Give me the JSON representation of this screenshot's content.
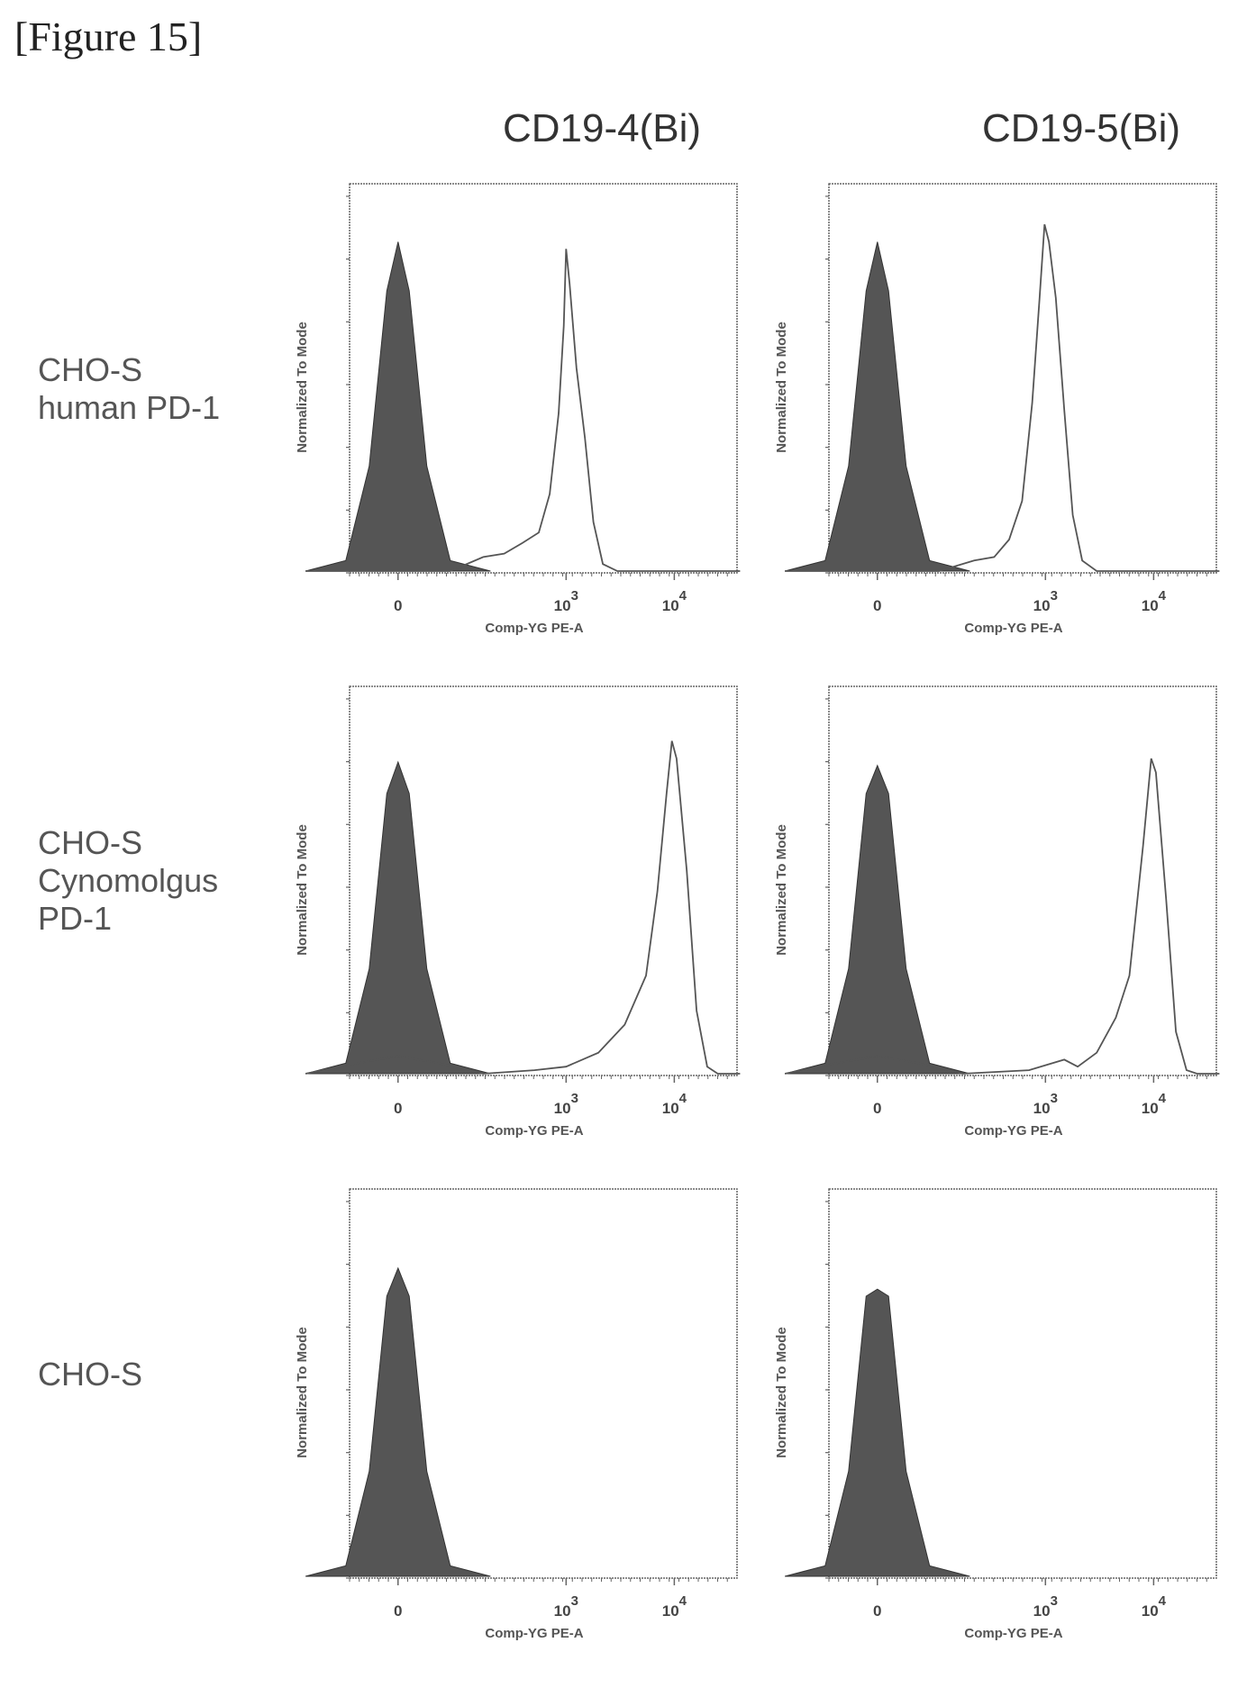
{
  "figure_label": "[Figure 15]",
  "columns": [
    "CD19-4(Bi)",
    "CD19-5(Bi)"
  ],
  "rows": [
    {
      "label_lines": [
        "CHO-S",
        "human PD-1"
      ]
    },
    {
      "label_lines": [
        "CHO-S",
        "Cynomolgus",
        "PD-1"
      ]
    },
    {
      "label_lines": [
        "CHO-S"
      ]
    }
  ],
  "colors": {
    "filled": "#555555",
    "outline": "#555555",
    "axis": "#666666"
  },
  "chart_data": [
    {
      "type": "area",
      "panel": "CD19-4(Bi) / CHO-S human PD-1",
      "xlabel": "Comp-YG PE-A",
      "ylabel": "Normalized To Mode",
      "x_ticks": [
        {
          "value": 0,
          "label": "0"
        },
        {
          "value": 1000,
          "label": "10",
          "sup": "3"
        },
        {
          "value": 10000,
          "label": "10",
          "sup": "4"
        }
      ],
      "ylim": [
        0,
        100
      ],
      "series": [
        {
          "role": "filled",
          "points": [
            [
              -180,
              0
            ],
            [
              -60,
              3
            ],
            [
              -25,
              30
            ],
            [
              -8,
              80
            ],
            [
              0,
              94
            ],
            [
              8,
              80
            ],
            [
              25,
              30
            ],
            [
              60,
              3
            ],
            [
              180,
              0
            ]
          ]
        },
        {
          "role": "outline",
          "points": [
            [
              -180,
              0
            ],
            [
              60,
              0
            ],
            [
              150,
              4
            ],
            [
              250,
              5
            ],
            [
              380,
              8
            ],
            [
              550,
              11
            ],
            [
              700,
              22
            ],
            [
              850,
              45
            ],
            [
              950,
              70
            ],
            [
              1000,
              92
            ],
            [
              1080,
              82
            ],
            [
              1250,
              58
            ],
            [
              1500,
              38
            ],
            [
              1800,
              14
            ],
            [
              2200,
              2
            ],
            [
              3000,
              0
            ],
            [
              40000,
              0
            ]
          ]
        }
      ]
    },
    {
      "type": "area",
      "panel": "CD19-5(Bi) / CHO-S human PD-1",
      "xlabel": "Comp-YG PE-A",
      "ylabel": "Normalized To Mode",
      "x_ticks": [
        {
          "value": 0,
          "label": "0"
        },
        {
          "value": 1000,
          "label": "10",
          "sup": "3"
        },
        {
          "value": 10000,
          "label": "10",
          "sup": "4"
        }
      ],
      "ylim": [
        0,
        100
      ],
      "series": [
        {
          "role": "filled",
          "points": [
            [
              -180,
              0
            ],
            [
              -60,
              3
            ],
            [
              -25,
              30
            ],
            [
              -8,
              80
            ],
            [
              0,
              94
            ],
            [
              8,
              80
            ],
            [
              25,
              30
            ],
            [
              60,
              3
            ],
            [
              180,
              0
            ]
          ]
        },
        {
          "role": "outline",
          "points": [
            [
              -180,
              0
            ],
            [
              80,
              0
            ],
            [
              200,
              3
            ],
            [
              320,
              4
            ],
            [
              450,
              9
            ],
            [
              600,
              20
            ],
            [
              750,
              48
            ],
            [
              880,
              78
            ],
            [
              980,
              99
            ],
            [
              1080,
              94
            ],
            [
              1250,
              78
            ],
            [
              1500,
              46
            ],
            [
              1800,
              16
            ],
            [
              2200,
              3
            ],
            [
              3000,
              0
            ],
            [
              40000,
              0
            ]
          ]
        }
      ]
    },
    {
      "type": "area",
      "panel": "CD19-4(Bi) / CHO-S Cynomolgus PD-1",
      "xlabel": "Comp-YG PE-A",
      "ylabel": "Normalized To Mode",
      "x_ticks": [
        {
          "value": 0,
          "label": "0"
        },
        {
          "value": 1000,
          "label": "10",
          "sup": "3"
        },
        {
          "value": 10000,
          "label": "10",
          "sup": "4"
        }
      ],
      "ylim": [
        0,
        100
      ],
      "series": [
        {
          "role": "filled",
          "points": [
            [
              -180,
              0
            ],
            [
              -60,
              3
            ],
            [
              -25,
              30
            ],
            [
              -8,
              80
            ],
            [
              0,
              89
            ],
            [
              8,
              80
            ],
            [
              25,
              30
            ],
            [
              60,
              3
            ],
            [
              180,
              0
            ]
          ]
        },
        {
          "role": "outline",
          "points": [
            [
              -180,
              0
            ],
            [
              -40,
              3
            ],
            [
              0,
              5
            ],
            [
              40,
              3
            ],
            [
              150,
              0
            ],
            [
              500,
              1
            ],
            [
              1000,
              2
            ],
            [
              2000,
              6
            ],
            [
              3500,
              14
            ],
            [
              5500,
              28
            ],
            [
              7000,
              52
            ],
            [
              8500,
              80
            ],
            [
              9500,
              95
            ],
            [
              10500,
              90
            ],
            [
              13000,
              58
            ],
            [
              16000,
              18
            ],
            [
              20000,
              2
            ],
            [
              25000,
              0
            ],
            [
              40000,
              0
            ]
          ]
        }
      ]
    },
    {
      "type": "area",
      "panel": "CD19-5(Bi) / CHO-S Cynomolgus PD-1",
      "xlabel": "Comp-YG PE-A",
      "ylabel": "Normalized To Mode",
      "x_ticks": [
        {
          "value": 0,
          "label": "0"
        },
        {
          "value": 1000,
          "label": "10",
          "sup": "3"
        },
        {
          "value": 10000,
          "label": "10",
          "sup": "4"
        }
      ],
      "ylim": [
        0,
        100
      ],
      "series": [
        {
          "role": "filled",
          "points": [
            [
              -180,
              0
            ],
            [
              -60,
              3
            ],
            [
              -25,
              30
            ],
            [
              -8,
              80
            ],
            [
              0,
              88
            ],
            [
              8,
              80
            ],
            [
              25,
              30
            ],
            [
              60,
              3
            ],
            [
              180,
              0
            ]
          ]
        },
        {
          "role": "outline",
          "points": [
            [
              -180,
              0
            ],
            [
              -40,
              3
            ],
            [
              0,
              5
            ],
            [
              40,
              3
            ],
            [
              150,
              0
            ],
            [
              700,
              1
            ],
            [
              1500,
              4
            ],
            [
              2000,
              2
            ],
            [
              3000,
              6
            ],
            [
              4500,
              16
            ],
            [
              6000,
              28
            ],
            [
              8000,
              65
            ],
            [
              9500,
              90
            ],
            [
              10500,
              86
            ],
            [
              13000,
              50
            ],
            [
              16000,
              12
            ],
            [
              20000,
              1
            ],
            [
              25000,
              0
            ],
            [
              40000,
              0
            ]
          ]
        }
      ]
    },
    {
      "type": "area",
      "panel": "CD19-4(Bi) / CHO-S",
      "xlabel": "Comp-YG PE-A",
      "ylabel": "Normalized To Mode",
      "x_ticks": [
        {
          "value": 0,
          "label": "0"
        },
        {
          "value": 1000,
          "label": "10",
          "sup": "3"
        },
        {
          "value": 10000,
          "label": "10",
          "sup": "4"
        }
      ],
      "ylim": [
        0,
        100
      ],
      "series": [
        {
          "role": "filled",
          "points": [
            [
              -180,
              0
            ],
            [
              -60,
              3
            ],
            [
              -25,
              30
            ],
            [
              -8,
              80
            ],
            [
              0,
              88
            ],
            [
              8,
              80
            ],
            [
              25,
              30
            ],
            [
              60,
              3
            ],
            [
              180,
              0
            ]
          ]
        }
      ]
    },
    {
      "type": "area",
      "panel": "CD19-5(Bi) / CHO-S",
      "xlabel": "Comp-YG PE-A",
      "ylabel": "Normalized To Mode",
      "x_ticks": [
        {
          "value": 0,
          "label": "0"
        },
        {
          "value": 1000,
          "label": "10",
          "sup": "3"
        },
        {
          "value": 10000,
          "label": "10",
          "sup": "4"
        }
      ],
      "ylim": [
        0,
        100
      ],
      "series": [
        {
          "role": "filled",
          "points": [
            [
              -180,
              0
            ],
            [
              -60,
              3
            ],
            [
              -25,
              30
            ],
            [
              -8,
              80
            ],
            [
              0,
              82
            ],
            [
              8,
              80
            ],
            [
              25,
              30
            ],
            [
              60,
              3
            ],
            [
              180,
              0
            ]
          ]
        }
      ]
    }
  ]
}
